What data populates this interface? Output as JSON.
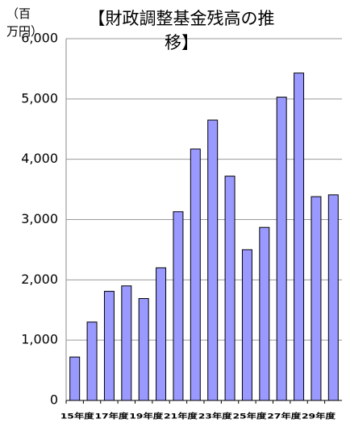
{
  "chart_data": {
    "type": "bar",
    "title": "【財政調整基金残高の推移】",
    "y_label": "（百万円）",
    "categories": [
      "15年度",
      null,
      "17年度",
      null,
      "19年度",
      null,
      "21年度",
      null,
      "23年度",
      null,
      "25年度",
      null,
      "27年度",
      null,
      "29年度",
      null
    ],
    "values": [
      720,
      1300,
      1810,
      1900,
      1690,
      2200,
      3130,
      4170,
      4650,
      3720,
      2500,
      2870,
      5030,
      5430,
      3380,
      3410
    ],
    "color": "#9999ff",
    "ylim": [
      0,
      6000
    ],
    "yticks": [
      0,
      {
        "value": 1000,
        "label": "1,000"
      },
      {
        "value": 2000,
        "label": "2,000"
      },
      {
        "value": 3000,
        "label": "3,000"
      },
      {
        "value": 4000,
        "label": "4,000"
      },
      {
        "value": 5000,
        "label": "5,000"
      },
      {
        "value": 6000,
        "label": "6,000"
      }
    ],
    "grid": true
  }
}
